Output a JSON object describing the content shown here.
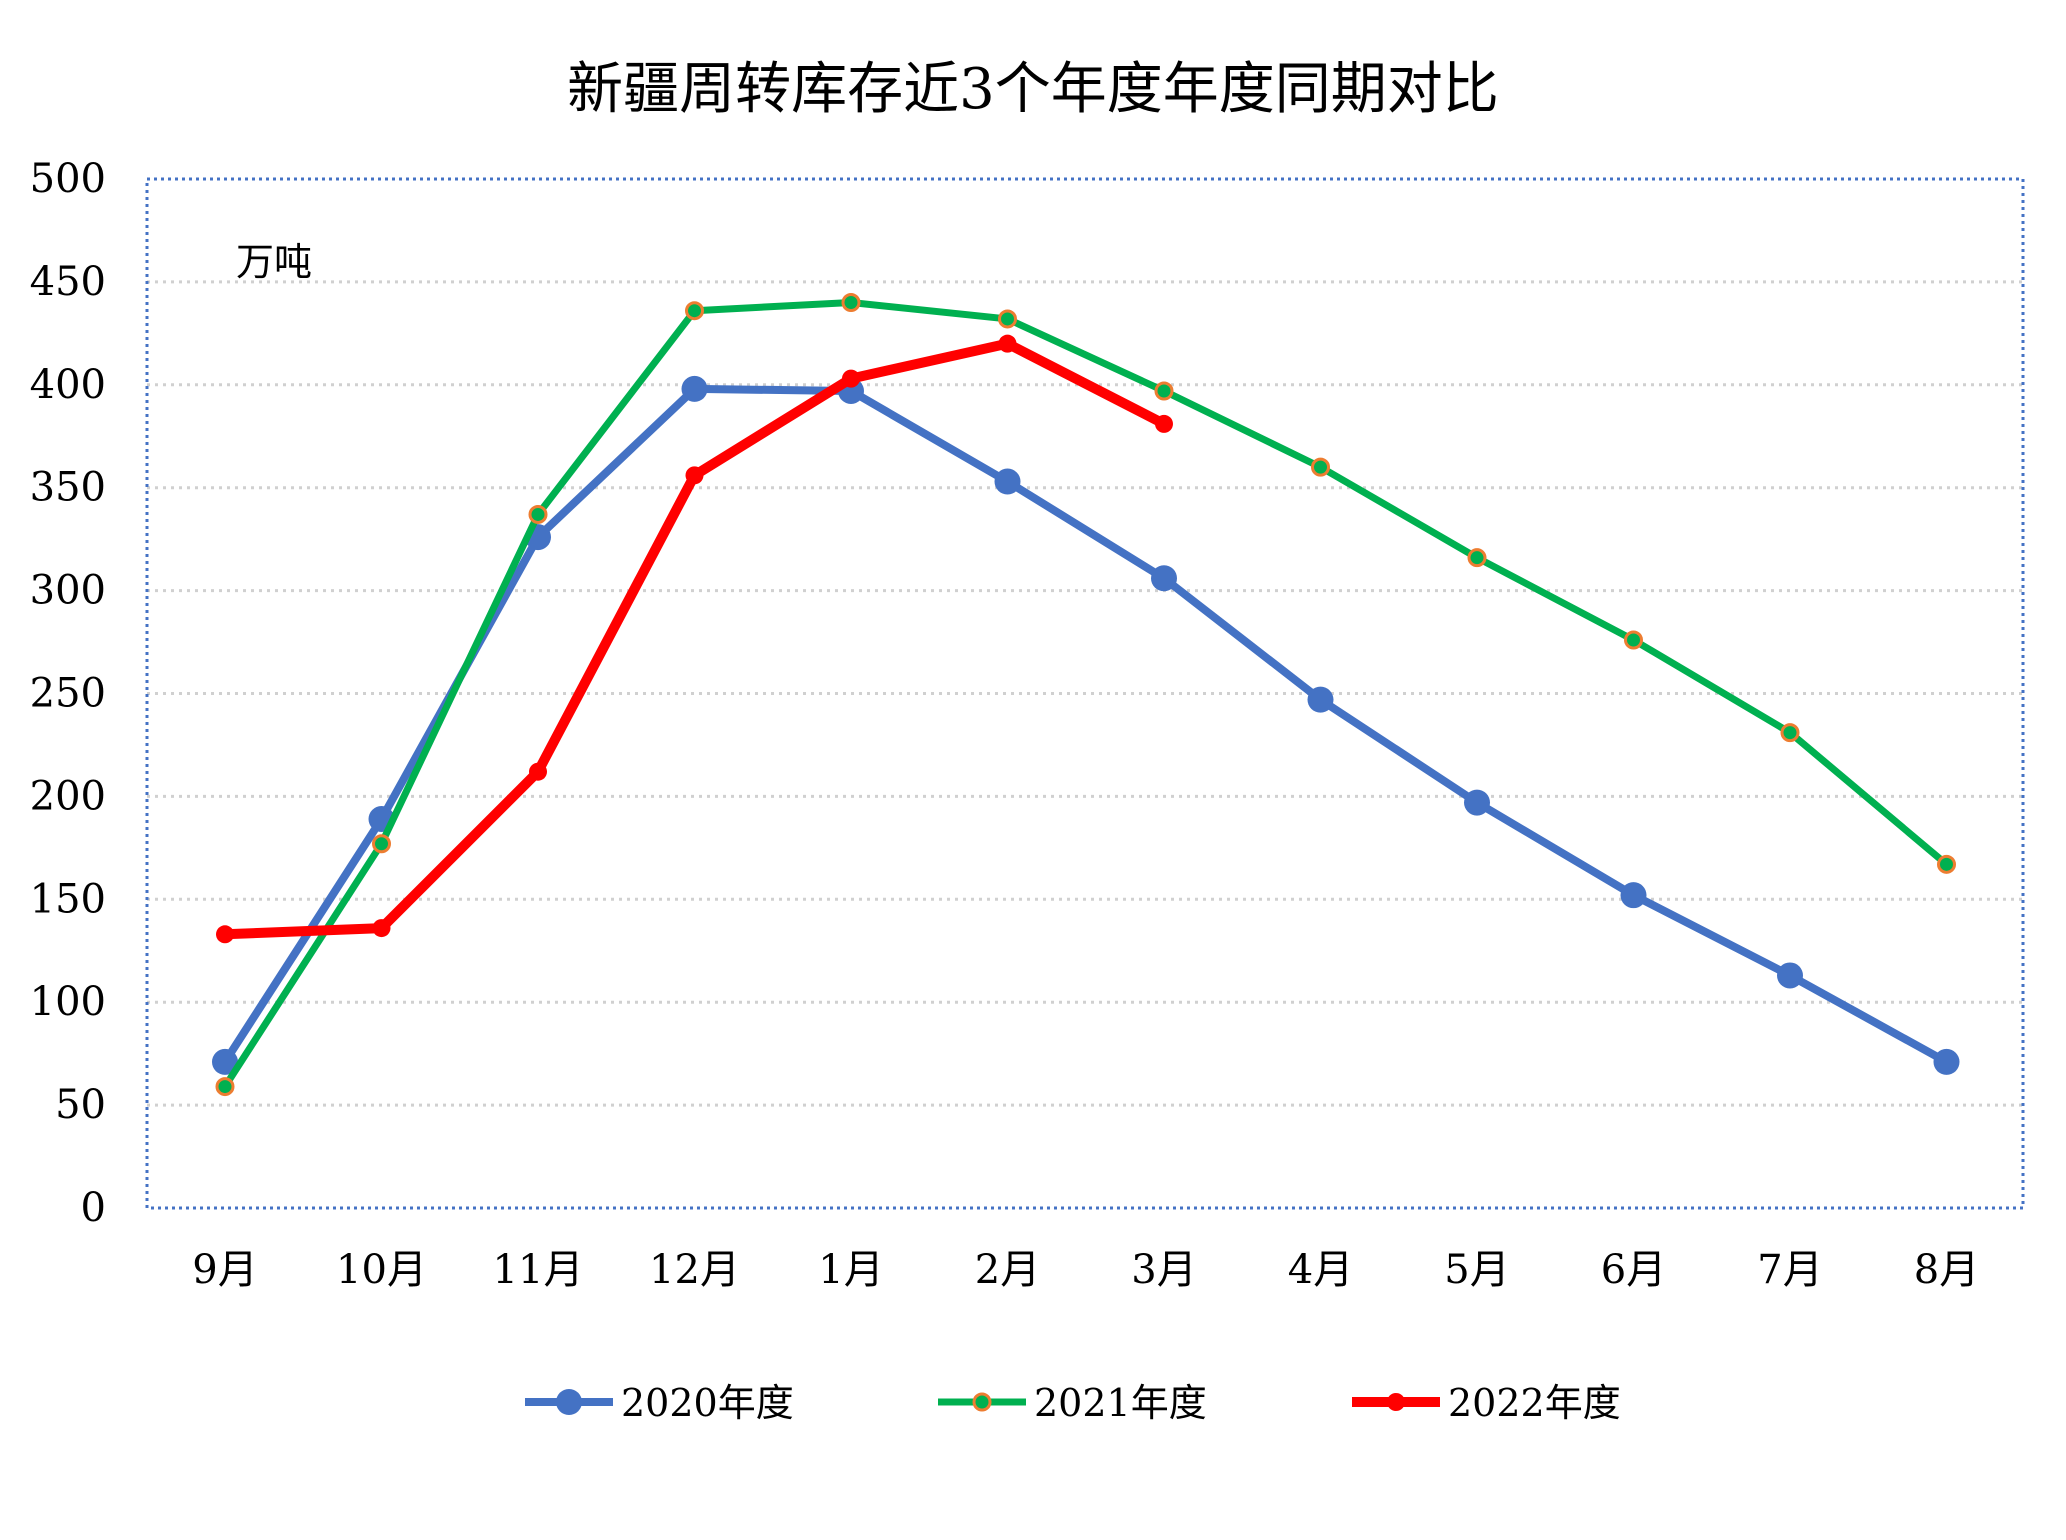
{
  "chart_data": {
    "type": "line",
    "title": "新疆周转库存近3个年度年度同期对比",
    "unit_label": "万吨",
    "xlabel": "",
    "ylabel": "",
    "categories": [
      "9月",
      "10月",
      "11月",
      "12月",
      "1月",
      "2月",
      "3月",
      "4月",
      "5月",
      "6月",
      "7月",
      "8月"
    ],
    "yticks": [
      "0",
      "50",
      "100",
      "150",
      "200",
      "250",
      "300",
      "350",
      "400",
      "450",
      "500"
    ],
    "ylim": [
      0,
      500
    ],
    "grid": true,
    "legend_position": "bottom",
    "series": [
      {
        "name": "2020年度",
        "color": "#4472C4",
        "marker_fill": "#4472C4",
        "marker_stroke": "#4472C4",
        "values": [
          71,
          189,
          326,
          398,
          397,
          353,
          306,
          247,
          197,
          152,
          113,
          71
        ]
      },
      {
        "name": "2021年度",
        "color": "#00B050",
        "marker_fill": "#00B050",
        "marker_stroke": "#ED7D31",
        "values": [
          59,
          177,
          337,
          436,
          440,
          432,
          397,
          360,
          316,
          276,
          231,
          167
        ]
      },
      {
        "name": "2022年度",
        "color": "#FF0000",
        "marker_fill": "#FF0000",
        "marker_stroke": "#FF0000",
        "values": [
          133,
          136,
          212,
          356,
          403,
          420,
          381,
          null,
          null,
          null,
          null,
          null
        ]
      }
    ]
  }
}
